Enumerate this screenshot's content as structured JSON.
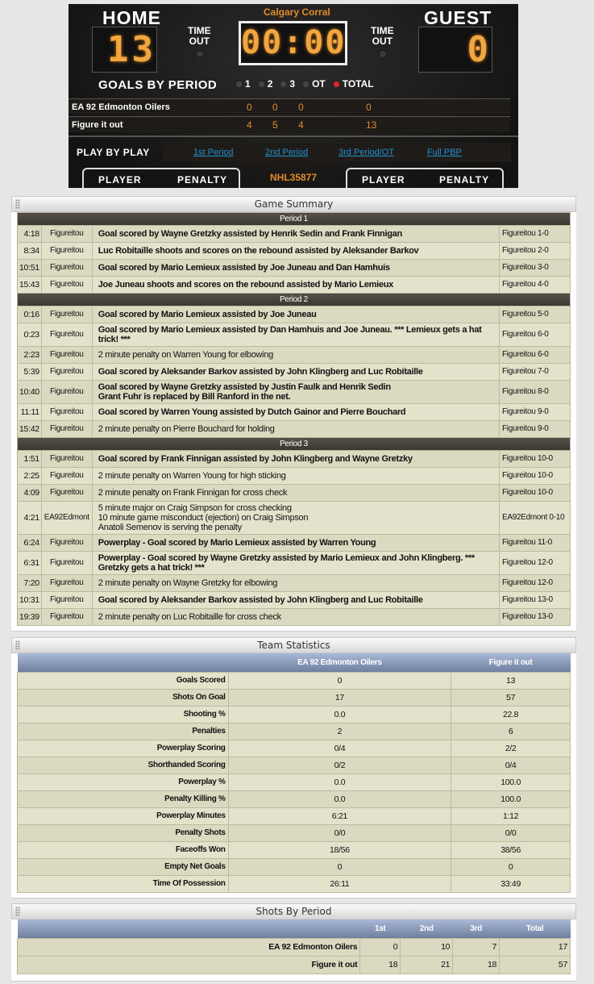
{
  "scoreboard": {
    "home_label": "HOME",
    "guest_label": "GUEST",
    "arena": "Calgary Corral",
    "clock": "00:00",
    "home_score": "13",
    "guest_score": "0",
    "timeout_label": "TIME\nOUT",
    "goals_by_period_label": "GOALS BY PERIOD",
    "periods": [
      "1",
      "2",
      "3",
      "OT",
      "TOTAL"
    ],
    "active_period": "TOTAL",
    "teams": [
      {
        "name": "EA 92 Edmonton Oilers",
        "p1": "0",
        "p2": "0",
        "p3": "0",
        "total": "0"
      },
      {
        "name": "Figure it out",
        "p1": "4",
        "p2": "5",
        "p3": "4",
        "total": "13"
      }
    ],
    "pbp_label": "PLAY BY PLAY",
    "pbp_links": [
      "1st Period",
      "2nd Period",
      "3rd Period/OT",
      "Full PBP"
    ],
    "player_label": "PLAYER",
    "penalty_label": "PENALTY",
    "game_id": "NHL35877",
    "accent": "#e18b2a",
    "link_color": "#1f8fd0"
  },
  "game_summary": {
    "title": "Game Summary",
    "periods": [
      {
        "label": "Period 1",
        "events": [
          {
            "time": "4:18",
            "team": "Figureitou",
            "desc": "Goal scored by Wayne Gretzky assisted by Henrik Sedin and Frank Finnigan",
            "score": "Figureitou 1-0",
            "goal": true
          },
          {
            "time": "8:34",
            "team": "Figureitou",
            "desc": "Luc Robitaille shoots and scores on the rebound assisted by Aleksander Barkov",
            "score": "Figureitou 2-0",
            "goal": true
          },
          {
            "time": "10:51",
            "team": "Figureitou",
            "desc": "Goal scored by Mario Lemieux assisted by Joe Juneau and Dan Hamhuis",
            "score": "Figureitou 3-0",
            "goal": true
          },
          {
            "time": "15:43",
            "team": "Figureitou",
            "desc": "Joe Juneau shoots and scores on the rebound assisted by Mario Lemieux",
            "score": "Figureitou 4-0",
            "goal": true
          }
        ]
      },
      {
        "label": "Period 2",
        "events": [
          {
            "time": "0:16",
            "team": "Figureitou",
            "desc": "Goal scored by Mario Lemieux assisted by Joe Juneau",
            "score": "Figureitou 5-0",
            "goal": true
          },
          {
            "time": "0:23",
            "team": "Figureitou",
            "desc": "Goal scored by Mario Lemieux assisted by Dan Hamhuis and Joe Juneau. *** Lemieux gets a hat trick! ***",
            "score": "Figureitou 6-0",
            "goal": true
          },
          {
            "time": "2:23",
            "team": "Figureitou",
            "desc": "2 minute penalty on Warren Young for elbowing",
            "score": "Figureitou 6-0",
            "goal": false
          },
          {
            "time": "5:39",
            "team": "Figureitou",
            "desc": "Goal scored by Aleksander Barkov assisted by John Klingberg and Luc Robitaille",
            "score": "Figureitou 7-0",
            "goal": true
          },
          {
            "time": "10:40",
            "team": "Figureitou",
            "desc": "Goal scored by Wayne Gretzky assisted by Justin Faulk and Henrik Sedin\nGrant Fuhr is replaced by Bill Ranford in the net.",
            "score": "Figureitou 8-0",
            "goal": true
          },
          {
            "time": "11:11",
            "team": "Figureitou",
            "desc": "Goal scored by Warren Young assisted by Dutch Gainor and Pierre Bouchard",
            "score": "Figureitou 9-0",
            "goal": true
          },
          {
            "time": "15:42",
            "team": "Figureitou",
            "desc": "2 minute penalty on Pierre Bouchard for holding",
            "score": "Figureitou 9-0",
            "goal": false
          }
        ]
      },
      {
        "label": "Period 3",
        "events": [
          {
            "time": "1:51",
            "team": "Figureitou",
            "desc": "Goal scored by Frank Finnigan assisted by John Klingberg and Wayne Gretzky",
            "score": "Figureitou 10-0",
            "goal": true
          },
          {
            "time": "2:25",
            "team": "Figureitou",
            "desc": "2 minute penalty on Warren Young for high sticking",
            "score": "Figureitou 10-0",
            "goal": false
          },
          {
            "time": "4:09",
            "team": "Figureitou",
            "desc": "2 minute penalty on Frank Finnigan for cross check",
            "score": "Figureitou 10-0",
            "goal": false
          },
          {
            "time": "4:21",
            "team": "EA92Edmont",
            "desc": "5 minute major on Craig Simpson for cross checking\n10 minute game misconduct (ejection) on Craig Simpson\nAnatoli Semenov is serving the penalty",
            "score": "EA92Edmont 0-10",
            "goal": false
          },
          {
            "time": "6:24",
            "team": "Figureitou",
            "desc": "Powerplay - Goal scored by Mario Lemieux assisted by Warren Young",
            "score": "Figureitou 11-0",
            "goal": true
          },
          {
            "time": "6:31",
            "team": "Figureitou",
            "desc": "Powerplay - Goal scored by Wayne Gretzky assisted by Mario Lemieux and John Klingberg. *** Gretzky gets a hat trick! ***",
            "score": "Figureitou 12-0",
            "goal": true
          },
          {
            "time": "7:20",
            "team": "Figureitou",
            "desc": "2 minute penalty on Wayne Gretzky for elbowing",
            "score": "Figureitou 12-0",
            "goal": false
          },
          {
            "time": "10:31",
            "team": "Figureitou",
            "desc": "Goal scored by Aleksander Barkov assisted by John Klingberg and Luc Robitaille",
            "score": "Figureitou 13-0",
            "goal": true
          },
          {
            "time": "19:39",
            "team": "Figureitou",
            "desc": "2 minute penalty on Luc Robitaille for cross check",
            "score": "Figureitou 13-0",
            "goal": false
          }
        ]
      }
    ]
  },
  "team_stats": {
    "title": "Team Statistics",
    "headers": [
      "",
      "EA 92 Edmonton Oilers",
      "Figure it out"
    ],
    "rows": [
      [
        "Goals Scored",
        "0",
        "13"
      ],
      [
        "Shots On Goal",
        "17",
        "57"
      ],
      [
        "Shooting %",
        "0.0",
        "22.8"
      ],
      [
        "Penalties",
        "2",
        "6"
      ],
      [
        "Powerplay Scoring",
        "0/4",
        "2/2"
      ],
      [
        "Shorthanded Scoring",
        "0/2",
        "0/4"
      ],
      [
        "Powerplay %",
        "0.0",
        "100.0"
      ],
      [
        "Penalty Killing %",
        "0.0",
        "100.0"
      ],
      [
        "Powerplay Minutes",
        "6:21",
        "1:12"
      ],
      [
        "Penalty Shots",
        "0/0",
        "0/0"
      ],
      [
        "Faceoffs Won",
        "18/56",
        "38/56"
      ],
      [
        "Empty Net Goals",
        "0",
        "0"
      ],
      [
        "Time Of Possession",
        "26:11",
        "33:49"
      ]
    ]
  },
  "shots_by_period": {
    "title": "Shots By Period",
    "headers": [
      "",
      "1st",
      "2nd",
      "3rd",
      "Total"
    ],
    "rows": [
      [
        "EA 92 Edmonton Oilers",
        "0",
        "10",
        "7",
        "17"
      ],
      [
        "Figure it out",
        "18",
        "21",
        "18",
        "57"
      ]
    ]
  }
}
